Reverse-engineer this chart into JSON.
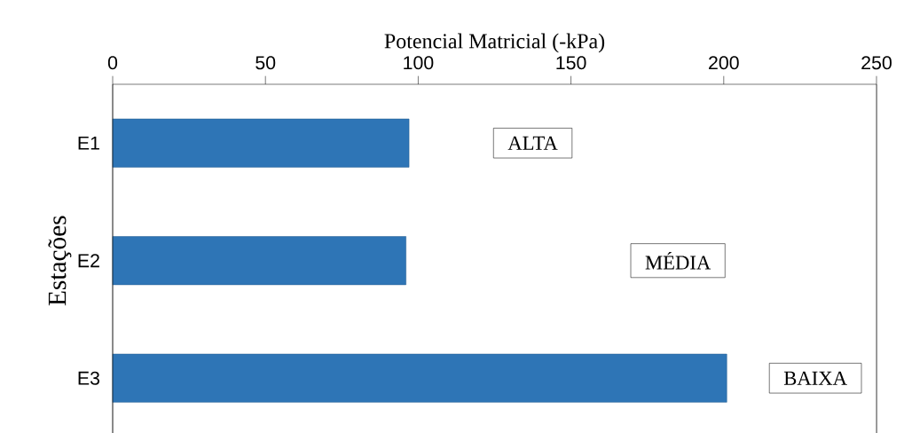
{
  "chart_data": {
    "type": "bar",
    "orientation": "horizontal",
    "xlabel": "Potencial Matricial (-kPa)",
    "ylabel": "Estações",
    "categories": [
      "E1",
      "E2",
      "E3"
    ],
    "values": [
      97,
      96,
      201
    ],
    "color": "#2e75b6",
    "xlim": [
      0,
      250
    ],
    "xticks": [
      0,
      50,
      100,
      150,
      200,
      250
    ],
    "grid": false,
    "annotations": [
      "ALTA",
      "MÉDIA",
      "BAIXA"
    ]
  }
}
